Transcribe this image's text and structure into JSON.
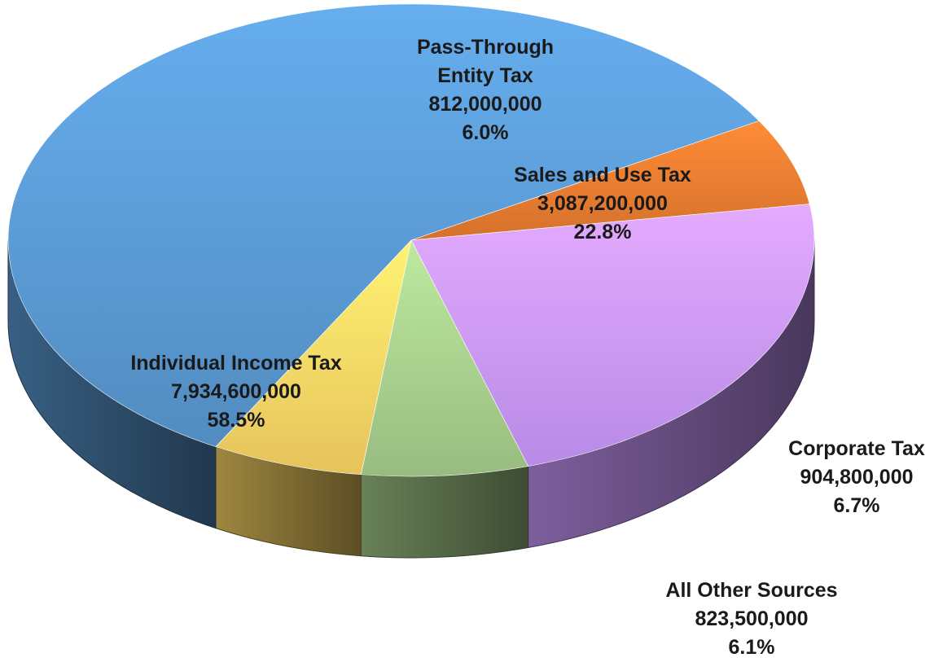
{
  "chart_data": {
    "type": "pie",
    "title": "",
    "style": "3d",
    "slices": [
      {
        "label": "Pass-Through Entity Tax",
        "value": 812000000,
        "value_text": "812,000,000",
        "percent": "6.0%",
        "color": "#ED7D31"
      },
      {
        "label": "Sales and Use Tax",
        "value": 3087200000,
        "value_text": "3,087,200,000",
        "percent": "22.8%",
        "color": "#CC99FF"
      },
      {
        "label": "Corporate Tax",
        "value": 904800000,
        "value_text": "904,800,000",
        "percent": "6.7%",
        "color": "#A9D18E"
      },
      {
        "label": "All Other Sources",
        "value": 823500000,
        "value_text": "823,500,000",
        "percent": "6.1%",
        "color": "#FFD966"
      },
      {
        "label": "Individual Income Tax",
        "value": 7934600000,
        "value_text": "7,934,600,000",
        "percent": "58.5%",
        "color": "#5B9BD5"
      }
    ]
  }
}
